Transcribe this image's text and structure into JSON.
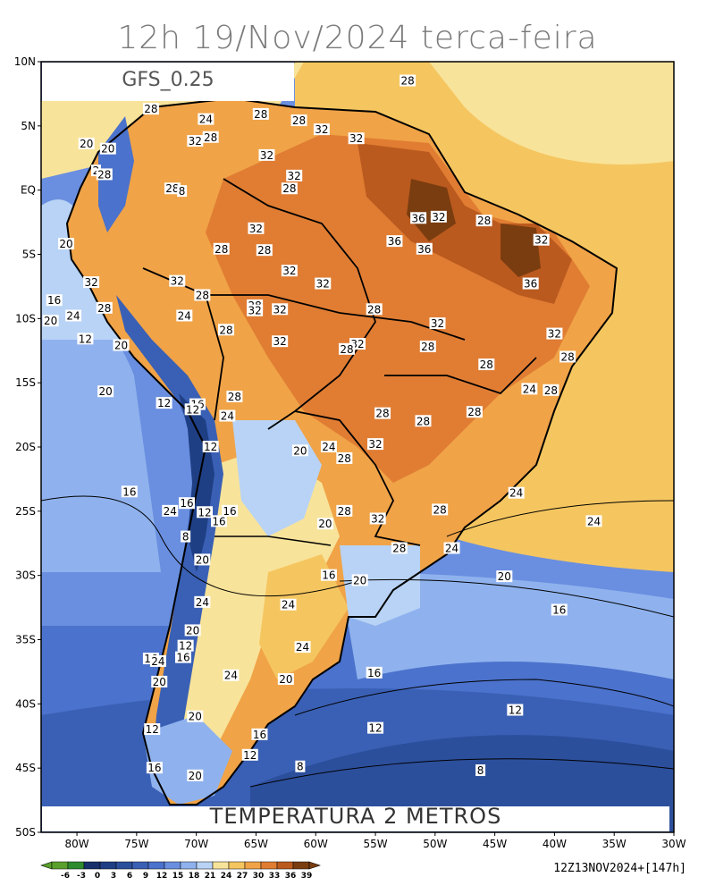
{
  "title": "12h 19/Nov/2024 terca-feira",
  "model_label": "GFS_0.25",
  "variable_label": "TEMPERATURA 2 METROS",
  "run_label": "12Z13NOV2024+[147h]",
  "lat_labels": [
    "10N",
    "5N",
    "EQ",
    "5S",
    "10S",
    "15S",
    "20S",
    "25S",
    "30S",
    "35S",
    "40S",
    "45S",
    "50S"
  ],
  "lon_labels": [
    "80W",
    "75W",
    "70W",
    "65W",
    "60W",
    "55W",
    "50W",
    "45W",
    "40W",
    "35W",
    "30W"
  ],
  "colorbar": {
    "ticks": [
      "-6",
      "-3",
      "0",
      "3",
      "6",
      "9",
      "12",
      "15",
      "18",
      "21",
      "24",
      "27",
      "30",
      "33",
      "36",
      "39"
    ],
    "colors": [
      "#5aa02c",
      "#2e8b2e",
      "#17306b",
      "#1f3f85",
      "#2c4f9c",
      "#3a60b5",
      "#4b72cc",
      "#6a8fe0",
      "#8fb2ee",
      "#b8d3f5",
      "#f8e39a",
      "#f5c660",
      "#f0a347",
      "#e07d33",
      "#bb5a1e",
      "#7a3d10"
    ]
  },
  "contour_labels": [
    {
      "text": "28",
      "lon": -52.3,
      "lat": 8.5
    },
    {
      "text": "28",
      "lon": -73.8,
      "lat": 6.3
    },
    {
      "text": "24",
      "lon": -69.2,
      "lat": 5.5
    },
    {
      "text": "28",
      "lon": -64.6,
      "lat": 5.9
    },
    {
      "text": "28",
      "lon": -61.4,
      "lat": 5.4
    },
    {
      "text": "32",
      "lon": -59.5,
      "lat": 4.7
    },
    {
      "text": "32",
      "lon": -56.6,
      "lat": 4.0
    },
    {
      "text": "20",
      "lon": -79.2,
      "lat": 3.6
    },
    {
      "text": "20",
      "lon": -77.4,
      "lat": 3.2
    },
    {
      "text": "32",
      "lon": -70.1,
      "lat": 3.8
    },
    {
      "text": "28",
      "lon": -68.8,
      "lat": 4.1
    },
    {
      "text": "32",
      "lon": -64.1,
      "lat": 2.7
    },
    {
      "text": "2",
      "lon": -78.4,
      "lat": 1.5
    },
    {
      "text": "28",
      "lon": -77.7,
      "lat": 1.2
    },
    {
      "text": "32",
      "lon": -61.8,
      "lat": 1.1
    },
    {
      "text": "28",
      "lon": -62.2,
      "lat": 0.1
    },
    {
      "text": "28",
      "lon": -72.0,
      "lat": 0.1
    },
    {
      "text": "8",
      "lon": -71.2,
      "lat": -0.1
    },
    {
      "text": "36",
      "lon": -51.4,
      "lat": -2.2
    },
    {
      "text": "32",
      "lon": -49.7,
      "lat": -2.1
    },
    {
      "text": "28",
      "lon": -45.9,
      "lat": -2.4
    },
    {
      "text": "32",
      "lon": -65.0,
      "lat": -3.0
    },
    {
      "text": "36",
      "lon": -53.4,
      "lat": -4.0
    },
    {
      "text": "32",
      "lon": -41.1,
      "lat": -3.9
    },
    {
      "text": "20",
      "lon": -80.9,
      "lat": -4.2
    },
    {
      "text": "28",
      "lon": -67.9,
      "lat": -4.6
    },
    {
      "text": "28",
      "lon": -64.3,
      "lat": -4.7
    },
    {
      "text": "36",
      "lon": -50.9,
      "lat": -4.6
    },
    {
      "text": "32",
      "lon": -62.2,
      "lat": -6.3
    },
    {
      "text": "32",
      "lon": -78.8,
      "lat": -7.2
    },
    {
      "text": "32",
      "lon": -71.6,
      "lat": -7.1
    },
    {
      "text": "32",
      "lon": -59.4,
      "lat": -7.3
    },
    {
      "text": "36",
      "lon": -42.0,
      "lat": -7.3
    },
    {
      "text": "28",
      "lon": -69.5,
      "lat": -8.2
    },
    {
      "text": "16",
      "lon": -81.9,
      "lat": -8.6
    },
    {
      "text": "28",
      "lon": -77.7,
      "lat": -9.2
    },
    {
      "text": "28",
      "lon": -65.1,
      "lat": -9.0
    },
    {
      "text": "32",
      "lon": -65.1,
      "lat": -9.4
    },
    {
      "text": "32",
      "lon": -63.0,
      "lat": -9.3
    },
    {
      "text": "28",
      "lon": -55.1,
      "lat": -9.3
    },
    {
      "text": "24",
      "lon": -80.3,
      "lat": -9.8
    },
    {
      "text": "24",
      "lon": -71.0,
      "lat": -9.8
    },
    {
      "text": "20",
      "lon": -82.2,
      "lat": -10.2
    },
    {
      "text": "32",
      "lon": -49.8,
      "lat": -10.4
    },
    {
      "text": "28",
      "lon": -67.5,
      "lat": -10.9
    },
    {
      "text": "12",
      "lon": -79.3,
      "lat": -11.6
    },
    {
      "text": "20",
      "lon": -76.3,
      "lat": -12.1
    },
    {
      "text": "32",
      "lon": -63.0,
      "lat": -11.8
    },
    {
      "text": "32",
      "lon": -56.5,
      "lat": -12.0
    },
    {
      "text": "28",
      "lon": -50.6,
      "lat": -12.2
    },
    {
      "text": "32",
      "lon": -40.0,
      "lat": -11.2
    },
    {
      "text": "28",
      "lon": -57.4,
      "lat": -12.4
    },
    {
      "text": "28",
      "lon": -38.9,
      "lat": -13.0
    },
    {
      "text": "28",
      "lon": -45.7,
      "lat": -13.6
    },
    {
      "text": "20",
      "lon": -77.6,
      "lat": -15.7
    },
    {
      "text": "24",
      "lon": -42.1,
      "lat": -15.5
    },
    {
      "text": "28",
      "lon": -40.3,
      "lat": -15.6
    },
    {
      "text": "28",
      "lon": -66.8,
      "lat": -16.1
    },
    {
      "text": "12",
      "lon": -72.7,
      "lat": -16.6
    },
    {
      "text": "16",
      "lon": -69.9,
      "lat": -16.7
    },
    {
      "text": "12",
      "lon": -70.3,
      "lat": -17.1
    },
    {
      "text": "28",
      "lon": -46.7,
      "lat": -17.3
    },
    {
      "text": "24",
      "lon": -67.4,
      "lat": -17.6
    },
    {
      "text": "28",
      "lon": -54.4,
      "lat": -17.4
    },
    {
      "text": "28",
      "lon": -51.0,
      "lat": -18.0
    },
    {
      "text": "32",
      "lon": -55.0,
      "lat": -19.8
    },
    {
      "text": "12",
      "lon": -68.8,
      "lat": -20.0
    },
    {
      "text": "24",
      "lon": -58.9,
      "lat": -20.0
    },
    {
      "text": "20",
      "lon": -61.3,
      "lat": -20.3
    },
    {
      "text": "28",
      "lon": -57.6,
      "lat": -20.9
    },
    {
      "text": "16",
      "lon": -75.6,
      "lat": -23.5
    },
    {
      "text": "24",
      "lon": -43.2,
      "lat": -23.6
    },
    {
      "text": "16",
      "lon": -70.8,
      "lat": -24.4
    },
    {
      "text": "24",
      "lon": -72.2,
      "lat": -25.0
    },
    {
      "text": "28",
      "lon": -57.6,
      "lat": -25.0
    },
    {
      "text": "28",
      "lon": -49.6,
      "lat": -24.9
    },
    {
      "text": "16",
      "lon": -67.2,
      "lat": -25.0
    },
    {
      "text": "12",
      "lon": -69.3,
      "lat": -25.1
    },
    {
      "text": "16",
      "lon": -68.1,
      "lat": -25.8
    },
    {
      "text": "32",
      "lon": -54.8,
      "lat": -25.6
    },
    {
      "text": "20",
      "lon": -59.2,
      "lat": -26.0
    },
    {
      "text": "24",
      "lon": -36.7,
      "lat": -25.8
    },
    {
      "text": "8",
      "lon": -70.9,
      "lat": -27.0
    },
    {
      "text": "28",
      "lon": -53.0,
      "lat": -27.9
    },
    {
      "text": "24",
      "lon": -48.6,
      "lat": -27.9
    },
    {
      "text": "20",
      "lon": -69.5,
      "lat": -28.8
    },
    {
      "text": "16",
      "lon": -58.9,
      "lat": -30.0
    },
    {
      "text": "20",
      "lon": -56.3,
      "lat": -30.4
    },
    {
      "text": "20",
      "lon": -44.2,
      "lat": -30.1
    },
    {
      "text": "24",
      "lon": -69.5,
      "lat": -32.1
    },
    {
      "text": "24",
      "lon": -62.3,
      "lat": -32.3
    },
    {
      "text": "16",
      "lon": -39.6,
      "lat": -32.7
    },
    {
      "text": "20",
      "lon": -70.3,
      "lat": -34.3
    },
    {
      "text": "24",
      "lon": -61.1,
      "lat": -35.6
    },
    {
      "text": "12",
      "lon": -70.9,
      "lat": -35.5
    },
    {
      "text": "16",
      "lon": -73.8,
      "lat": -36.5
    },
    {
      "text": "24",
      "lon": -73.2,
      "lat": -36.7
    },
    {
      "text": "16",
      "lon": -71.1,
      "lat": -36.4
    },
    {
      "text": "16",
      "lon": -55.1,
      "lat": -37.6
    },
    {
      "text": "24",
      "lon": -67.1,
      "lat": -37.8
    },
    {
      "text": "20",
      "lon": -62.5,
      "lat": -38.1
    },
    {
      "text": "20",
      "lon": -73.1,
      "lat": -38.3
    },
    {
      "text": "12",
      "lon": -43.3,
      "lat": -40.5
    },
    {
      "text": "20",
      "lon": -70.1,
      "lat": -41.0
    },
    {
      "text": "12",
      "lon": -73.7,
      "lat": -42.0
    },
    {
      "text": "16",
      "lon": -64.7,
      "lat": -42.4
    },
    {
      "text": "12",
      "lon": -55.0,
      "lat": -41.9
    },
    {
      "text": "12",
      "lon": -65.5,
      "lat": -44.0
    },
    {
      "text": "8",
      "lon": -61.3,
      "lat": -44.9
    },
    {
      "text": "16",
      "lon": -73.5,
      "lat": -45.0
    },
    {
      "text": "8",
      "lon": -46.2,
      "lat": -45.2
    },
    {
      "text": "20",
      "lon": -70.1,
      "lat": -45.6
    }
  ]
}
